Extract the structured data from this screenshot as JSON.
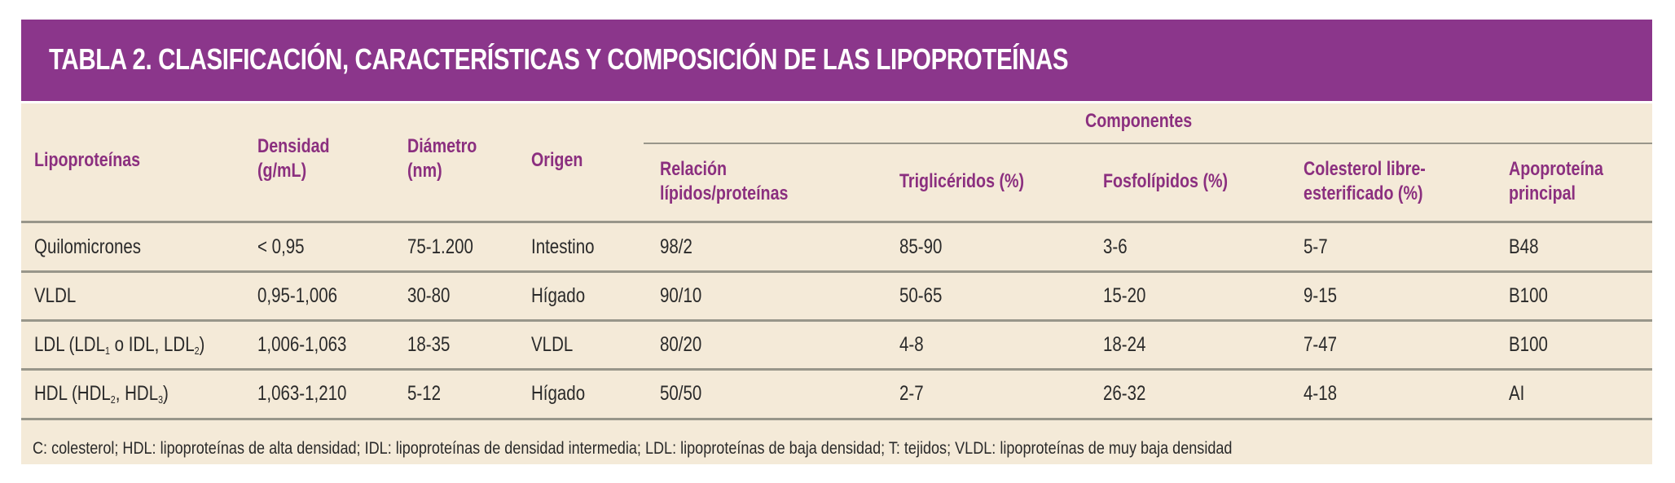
{
  "title": "TABLA 2. CLASIFICACIÓN, CARACTERÍSTICAS Y COMPOSICIÓN DE LAS LIPOPROTEÍNAS",
  "group_header": "Componentes",
  "headers": {
    "lipoproteinas": "Lipoproteínas",
    "densidad": [
      "Densidad",
      "(g/mL)"
    ],
    "diametro": [
      "Diámetro",
      "(nm)"
    ],
    "origen": "Origen",
    "relacion": [
      "Relación",
      "lípidos/proteínas"
    ],
    "trigliceridos": "Triglicéridos (%)",
    "fosfolipidos": "Fosfolípidos (%)",
    "colesterol": [
      "Colesterol libre-",
      "esterificado (%)"
    ],
    "apoproteina": [
      "Apoproteína",
      "principal"
    ]
  },
  "rows": [
    {
      "name": "Quilomicrones",
      "densidad": "< 0,95",
      "diametro": "75-1.200",
      "origen": "Intestino",
      "relacion": "98/2",
      "trigliceridos": "85-90",
      "fosfolipidos": "3-6",
      "colesterol": "5-7",
      "apoproteina": "B48"
    },
    {
      "name": "VLDL",
      "densidad": "0,95-1,006",
      "diametro": "30-80",
      "origen": "Hígado",
      "relacion": "90/10",
      "trigliceridos": "50-65",
      "fosfolipidos": "15-20",
      "colesterol": "9-15",
      "apoproteina": "B100"
    },
    {
      "name_parts": [
        "LDL (LDL",
        "1",
        " o IDL, LDL",
        "2",
        ")"
      ],
      "densidad": "1,006-1,063",
      "diametro": "18-35",
      "origen": "VLDL",
      "relacion": "80/20",
      "trigliceridos": "4-8",
      "fosfolipidos": "18-24",
      "colesterol": "7-47",
      "apoproteina": "B100"
    },
    {
      "name_parts": [
        "HDL (HDL",
        "2",
        ", HDL",
        "3",
        ")"
      ],
      "densidad": "1,063-1,210",
      "diametro": "5-12",
      "origen": "Hígado",
      "relacion": "50/50",
      "trigliceridos": "2-7",
      "fosfolipidos": "26-32",
      "colesterol": "4-18",
      "apoproteina": "AI"
    }
  ],
  "footnote": "C: colesterol; HDL: lipoproteínas de alta densidad; IDL: lipoproteínas de densidad intermedia; LDL: lipoproteínas de baja densidad; T: tejidos; VLDL: lipoproteínas de muy baja densidad",
  "colors": {
    "title_bg": "#8b368b",
    "panel_bg": "#f4ead8",
    "header_text": "#8b2f7f"
  }
}
